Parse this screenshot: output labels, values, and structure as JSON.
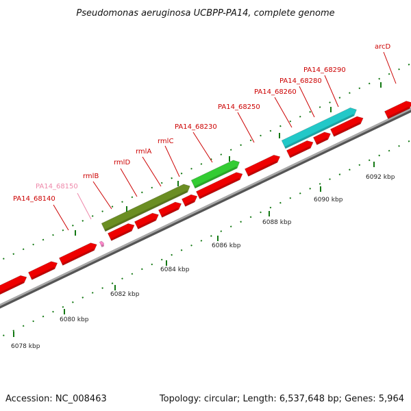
{
  "title": "Pseudomonas aeruginosa UCBPP-PA14, complete genome",
  "footer": {
    "accession": "Accession: NC_008463",
    "topology": "Topology: circular; Length: 6,537,648 bp; Genes: 5,964"
  },
  "colors": {
    "gene_red": "#ee0000",
    "gene_olive": "#6b8e23",
    "gene_green": "#33cc33",
    "gene_cyan": "#22c8c8",
    "label_red": "#cc0000",
    "label_pink": "#ee88aa",
    "tick_green": "#117711",
    "backbone": "#999999"
  },
  "scale": {
    "unit": "kbp",
    "ticks": [
      {
        "label": "6078 kbp"
      },
      {
        "label": "6080 kbp"
      },
      {
        "label": "6082 kbp"
      },
      {
        "label": "6084 kbp"
      },
      {
        "label": "6086 kbp"
      },
      {
        "label": "6088 kbp"
      },
      {
        "label": "6090 kbp"
      },
      {
        "label": "6092 kbp"
      }
    ]
  },
  "labels": [
    {
      "text": "PA14_68140",
      "color": "label_red"
    },
    {
      "text": "PA14_68150",
      "color": "label_pink"
    },
    {
      "text": "rmlB",
      "color": "label_red"
    },
    {
      "text": "rmlD",
      "color": "label_red"
    },
    {
      "text": "rmlA",
      "color": "label_red"
    },
    {
      "text": "rmlC",
      "color": "label_red"
    },
    {
      "text": "PA14_68230",
      "color": "label_red"
    },
    {
      "text": "PA14_68250",
      "color": "label_red"
    },
    {
      "text": "PA14_68260",
      "color": "label_red"
    },
    {
      "text": "PA14_68280",
      "color": "label_red"
    },
    {
      "text": "PA14_68290",
      "color": "label_red"
    },
    {
      "text": "arcD",
      "color": "label_red"
    }
  ]
}
